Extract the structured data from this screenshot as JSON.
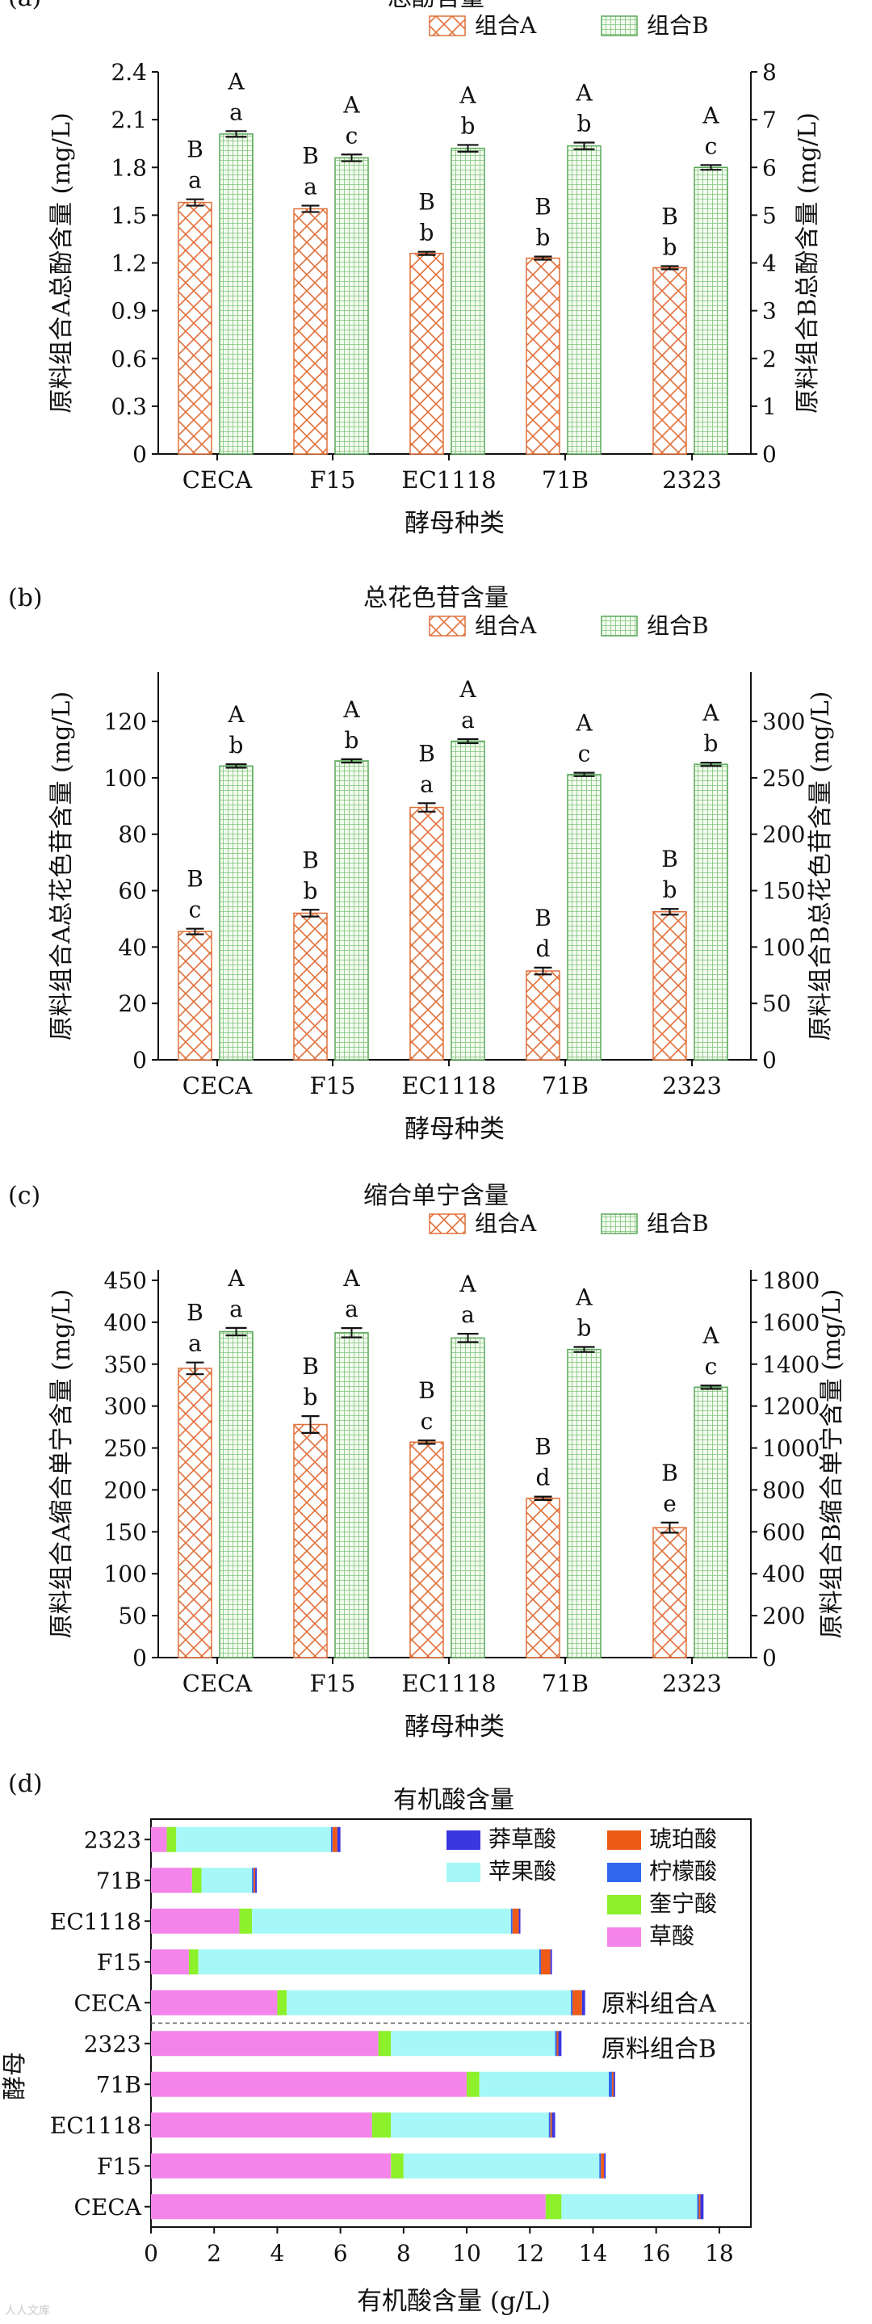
{
  "chart_data": [
    {
      "panel": "(a)",
      "type": "bar",
      "title": "总酚含量",
      "xlabel": "酵母种类",
      "ylabel_left": "原料组合A总酚含量 (mg/L)",
      "ylabel_right": "原料组合B总酚含量 (mg/L)",
      "categories": [
        "CECA",
        "F15",
        "EC1118",
        "71B",
        "2323"
      ],
      "legend": [
        "组合A",
        "组合B"
      ],
      "ylim_left": [
        0,
        2.4
      ],
      "yticks_left": [
        "0",
        "0.3",
        "0.6",
        "0.9",
        "1.2",
        "1.5",
        "1.8",
        "2.1",
        "2.4"
      ],
      "ylim_right": [
        0,
        8
      ],
      "yticks_right": [
        "0",
        "1",
        "2",
        "3",
        "4",
        "5",
        "6",
        "7",
        "8"
      ],
      "series": [
        {
          "name": "组合A",
          "axis": "left",
          "values": [
            1.58,
            1.54,
            1.26,
            1.23,
            1.17
          ],
          "errors": [
            0.02,
            0.02,
            0.01,
            0.01,
            0.01
          ],
          "letters_upper": [
            "B",
            "B",
            "B",
            "B",
            "B"
          ],
          "letters_lower": [
            "a",
            "a",
            "b",
            "b",
            "b"
          ]
        },
        {
          "name": "组合B",
          "axis": "right",
          "values": [
            6.7,
            6.2,
            6.4,
            6.45,
            6.0
          ],
          "errors": [
            0.06,
            0.07,
            0.07,
            0.07,
            0.05
          ],
          "letters_upper": [
            "A",
            "A",
            "A",
            "A",
            "A"
          ],
          "letters_lower": [
            "a",
            "c",
            "b",
            "b",
            "c"
          ]
        }
      ]
    },
    {
      "panel": "(b)",
      "type": "bar",
      "title": "总花色苷含量",
      "xlabel": "酵母种类",
      "ylabel_left": "原料组合A总花色苷含量 (mg/L)",
      "ylabel_right": "原料组合B总花色苷含量 (mg/L)",
      "categories": [
        "CECA",
        "F15",
        "EC1118",
        "71B",
        "2323"
      ],
      "legend": [
        "组合A",
        "组合B"
      ],
      "ylim_left": [
        0,
        137.5
      ],
      "yticks_left": [
        "0",
        "20",
        "40",
        "60",
        "80",
        "100",
        "120"
      ],
      "ylim_right": [
        0,
        343.75
      ],
      "yticks_right": [
        "0",
        "50",
        "100",
        "150",
        "200",
        "250",
        "300"
      ],
      "series": [
        {
          "name": "组合A",
          "axis": "left",
          "values": [
            45.5,
            52,
            89.5,
            31.5,
            52.5
          ],
          "errors": [
            1.0,
            1.2,
            1.5,
            1.2,
            1.0
          ],
          "letters_upper": [
            "B",
            "B",
            "B",
            "B",
            "B"
          ],
          "letters_lower": [
            "c",
            "b",
            "a",
            "d",
            "b"
          ]
        },
        {
          "name": "组合B",
          "axis": "right",
          "values": [
            260.5,
            265,
            282.5,
            253,
            262
          ],
          "errors": [
            1.5,
            1.5,
            1.8,
            1.5,
            1.5
          ],
          "letters_upper": [
            "A",
            "A",
            "A",
            "A",
            "A"
          ],
          "letters_lower": [
            "b",
            "b",
            "a",
            "c",
            "b"
          ]
        }
      ]
    },
    {
      "panel": "(c)",
      "type": "bar",
      "title": "缩合单宁含量",
      "xlabel": "酵母种类",
      "ylabel_left": "原料组合A缩合单宁含量 (mg/L)",
      "ylabel_right": "原料组合B缩合单宁含量 (mg/L)",
      "categories": [
        "CECA",
        "F15",
        "EC1118",
        "71B",
        "2323"
      ],
      "legend": [
        "组合A",
        "组合B"
      ],
      "ylim_left": [
        0,
        462.5
      ],
      "yticks_left": [
        "0",
        "50",
        "100",
        "150",
        "200",
        "250",
        "300",
        "350",
        "400",
        "450"
      ],
      "ylim_right": [
        0,
        1850
      ],
      "yticks_right": [
        "0",
        "200",
        "400",
        "600",
        "800",
        "1000",
        "1200",
        "1400",
        "1600",
        "1800"
      ],
      "series": [
        {
          "name": "组合A",
          "axis": "left",
          "values": [
            345,
            278,
            257,
            190,
            155
          ],
          "errors": [
            7,
            10,
            2,
            2,
            6
          ],
          "letters_upper": [
            "B",
            "B",
            "B",
            "B",
            "B"
          ],
          "letters_lower": [
            "a",
            "b",
            "c",
            "d",
            "e"
          ]
        },
        {
          "name": "组合B",
          "axis": "right",
          "values": [
            1555,
            1550,
            1525,
            1470,
            1290
          ],
          "errors": [
            18,
            22,
            20,
            12,
            8
          ],
          "letters_upper": [
            "A",
            "A",
            "A",
            "A",
            "A"
          ],
          "letters_lower": [
            "a",
            "a",
            "a",
            "b",
            "c"
          ]
        }
      ]
    },
    {
      "panel": "(d)",
      "type": "bar",
      "orientation": "horizontal",
      "stacked": true,
      "title": "有机酸含量",
      "xlabel": "有机酸含量 (g/L)",
      "ylabel": "酵母",
      "xlim": [
        0,
        19
      ],
      "xticks": [
        "0",
        "2",
        "4",
        "6",
        "8",
        "10",
        "12",
        "14",
        "16",
        "18"
      ],
      "categories": [
        "2323",
        "71B",
        "EC1118",
        "F15",
        "CECA",
        "2323",
        "71B",
        "EC1118",
        "F15",
        "CECA"
      ],
      "group_labels": [
        "原料组合A",
        "原料组合B"
      ],
      "legend": [
        "莽草酸",
        "琥珀酸",
        "苹果酸",
        "柠檬酸",
        "奎宁酸",
        "草酸"
      ],
      "colors": {
        "草酸": "#f584ea",
        "奎宁酸": "#8cf02a",
        "苹果酸": "#a6f8f8",
        "柠檬酸": "#2f68ee",
        "琥珀酸": "#ee5b16",
        "莽草酸": "#3a36e0"
      },
      "series": [
        {
          "name": "草酸",
          "values": [
            0.5,
            1.3,
            2.8,
            1.2,
            4.0,
            7.2,
            10.0,
            7.0,
            7.6,
            12.5
          ]
        },
        {
          "name": "奎宁酸",
          "values": [
            0.3,
            0.3,
            0.4,
            0.3,
            0.3,
            0.4,
            0.4,
            0.6,
            0.4,
            0.5
          ]
        },
        {
          "name": "苹果酸",
          "values": [
            4.9,
            1.6,
            8.2,
            10.8,
            9.0,
            5.2,
            4.1,
            5.0,
            6.2,
            4.3
          ]
        },
        {
          "name": "柠檬酸",
          "values": [
            0.05,
            0.05,
            0.05,
            0.05,
            0.05,
            0.05,
            0.1,
            0.05,
            0.05,
            0.05
          ]
        },
        {
          "name": "琥珀酸",
          "values": [
            0.15,
            0.05,
            0.2,
            0.3,
            0.3,
            0.05,
            0.05,
            0.05,
            0.1,
            0.05
          ]
        },
        {
          "name": "莽草酸",
          "values": [
            0.1,
            0.05,
            0.05,
            0.05,
            0.1,
            0.1,
            0.05,
            0.1,
            0.05,
            0.1
          ]
        }
      ]
    }
  ],
  "watermark": "人人文库"
}
